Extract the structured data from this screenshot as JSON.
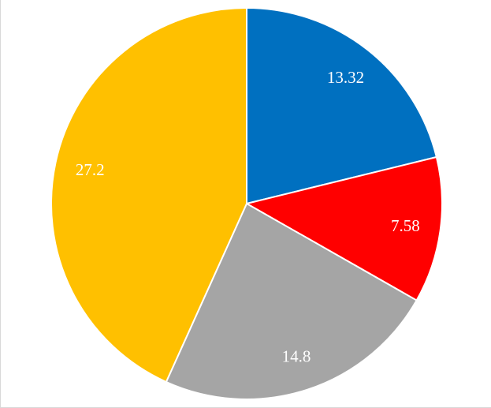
{
  "chart_data": {
    "type": "pie",
    "values": [
      13.32,
      7.58,
      14.8,
      27.2
    ],
    "data_labels": [
      "13.32",
      "7.58",
      "14.8",
      "27.2"
    ],
    "colors": [
      "#0070C0",
      "#FF0000",
      "#A5A5A5",
      "#FFC000"
    ],
    "start_angle": "12 o'clock",
    "direction": "clockwise",
    "legend": "none",
    "title": ""
  }
}
